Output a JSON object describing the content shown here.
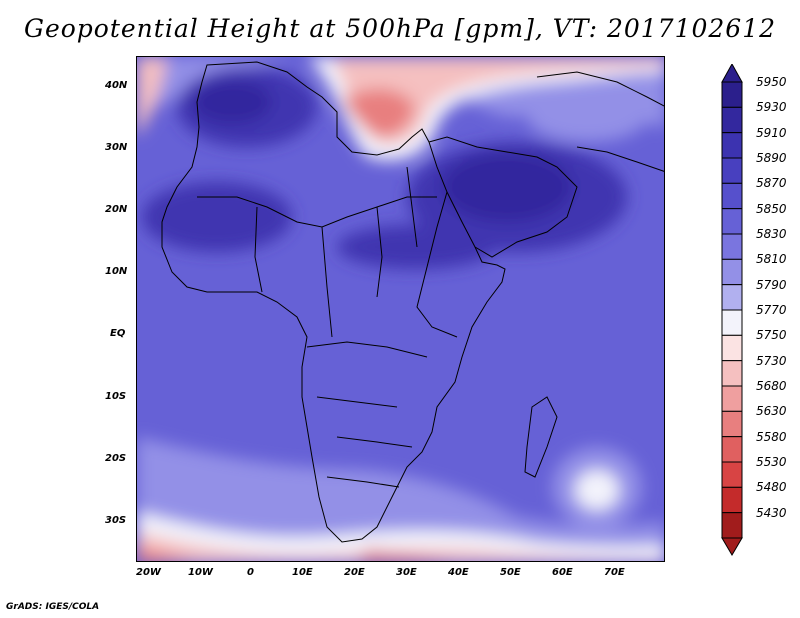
{
  "title": "Geopotential Height at 500hPa [gpm], VT: 2017102612",
  "credit": "GrADS: IGES/COLA",
  "axes": {
    "lat_labels": [
      "40N",
      "30N",
      "20N",
      "10N",
      "EQ",
      "10S",
      "20S",
      "30S"
    ],
    "lon_labels": [
      "20W",
      "10W",
      "0",
      "10E",
      "20E",
      "30E",
      "40E",
      "50E",
      "60E",
      "70E"
    ]
  },
  "colorbar": {
    "levels": [
      "5950",
      "5930",
      "5910",
      "5890",
      "5870",
      "5850",
      "5830",
      "5810",
      "5790",
      "5770",
      "5750",
      "5730",
      "5680",
      "5630",
      "5580",
      "5530",
      "5480",
      "5430"
    ],
    "colors": [
      "#2b1f8c",
      "#33289e",
      "#3c33b0",
      "#4840bf",
      "#5650cc",
      "#6661d6",
      "#7a75df",
      "#9390e7",
      "#b1b0ef",
      "#f3f3fb",
      "#fbe3e3",
      "#f5c0c0",
      "#ef9f9f",
      "#e87f7f",
      "#e06060",
      "#d84444",
      "#c42b2b",
      "#a11c1c"
    ]
  },
  "map": {
    "region": "Africa",
    "field_colors": {
      "background": "#6661d6",
      "dark": "#4035b0",
      "darker": "#33289e",
      "light": "#9390e7",
      "white": "#f3f3fb",
      "pink": "#f5c0c0",
      "red": "#e87f7f",
      "deep_red": "#d84444"
    }
  }
}
